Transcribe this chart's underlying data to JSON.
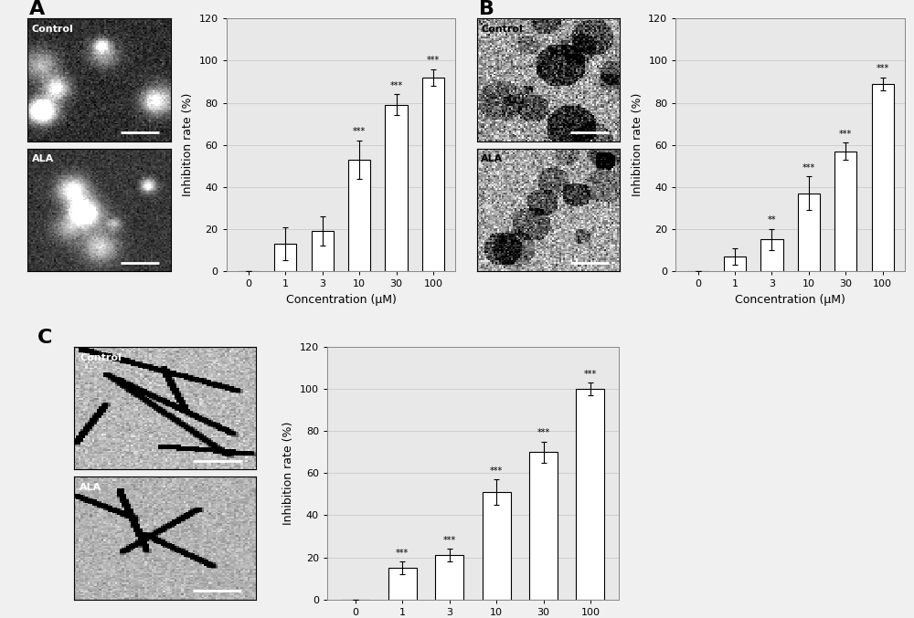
{
  "panel_A": {
    "label": "A",
    "bar_values": [
      0,
      13,
      19,
      53,
      79,
      92
    ],
    "bar_errors": [
      0,
      8,
      7,
      9,
      5,
      4
    ],
    "sig_labels": [
      "",
      "",
      "",
      "***",
      "***",
      "***"
    ],
    "x_ticks": [
      "0",
      "1",
      "3",
      "10",
      "30",
      "100"
    ],
    "xlabel": "Concentration (μM)",
    "ylabel": "Inhibition rate (%)",
    "ylim": [
      0,
      120
    ],
    "yticks": [
      0,
      20,
      40,
      60,
      80,
      100,
      120
    ]
  },
  "panel_B": {
    "label": "B",
    "bar_values": [
      0,
      7,
      15,
      37,
      57,
      89
    ],
    "bar_errors": [
      0,
      4,
      5,
      8,
      4,
      3
    ],
    "sig_labels": [
      "",
      "",
      "**",
      "***",
      "***",
      "***"
    ],
    "x_ticks": [
      "0",
      "1",
      "3",
      "10",
      "30",
      "100"
    ],
    "xlabel": "Concentration (μM)",
    "ylabel": "Inhibition rate (%)",
    "ylim": [
      0,
      120
    ],
    "yticks": [
      0,
      20,
      40,
      60,
      80,
      100,
      120
    ]
  },
  "panel_C": {
    "label": "C",
    "bar_values": [
      0,
      15,
      21,
      51,
      70,
      100
    ],
    "bar_errors": [
      0,
      3,
      3,
      6,
      5,
      3
    ],
    "sig_labels": [
      "",
      "***",
      "***",
      "***",
      "***",
      "***"
    ],
    "x_ticks": [
      "0",
      "1",
      "3",
      "10",
      "30",
      "100"
    ],
    "xlabel": "Concentration (μM)",
    "ylabel": "Inhibition rate (%)",
    "ylim": [
      0,
      120
    ],
    "yticks": [
      0,
      20,
      40,
      60,
      80,
      100,
      120
    ]
  },
  "bar_color": "#ffffff",
  "bar_edgecolor": "#000000",
  "chart_bg_color": "#e8e8e8",
  "fig_bg": "#f0f0f0",
  "control_label": "Control",
  "ala_label": "ALA",
  "tick_fontsize": 8,
  "axis_label_fontsize": 9,
  "sig_fontsize": 7,
  "panel_label_fontsize": 16
}
